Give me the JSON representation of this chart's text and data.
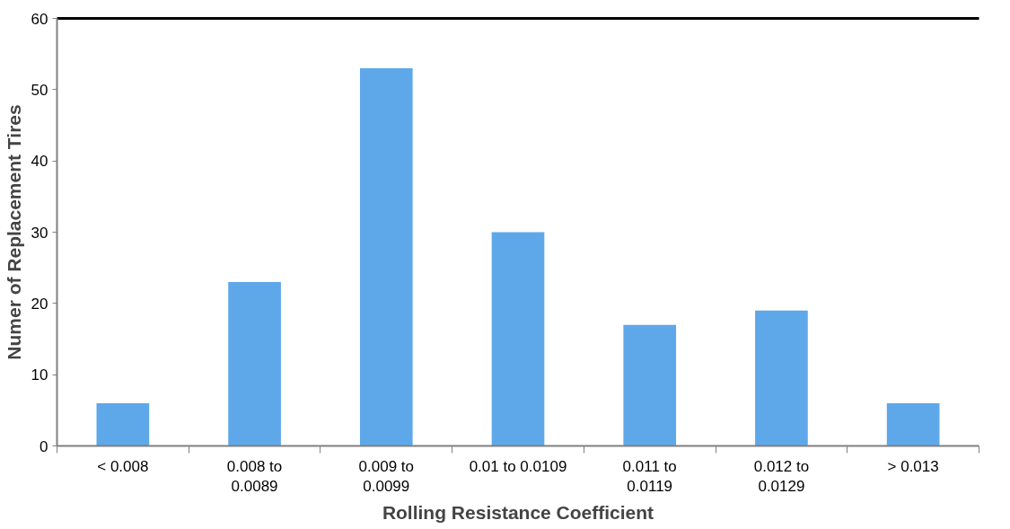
{
  "chart_data": {
    "type": "bar",
    "xlabel": "Rolling Resistance Coefficient",
    "ylabel": "Numer of Replacement Tires",
    "categories": [
      "< 0.008",
      "0.008 to 0.0089",
      "0.009 to 0.0099",
      "0.01 to 0.0109",
      "0.011 to 0.0119",
      "0.012 to 0.0129",
      "> 0.013"
    ],
    "values": [
      6,
      23,
      53,
      30,
      17,
      19,
      6
    ],
    "color": "#5ea8ea",
    "ylim": [
      0,
      60
    ],
    "yticks": [
      0,
      10,
      20,
      30,
      40,
      50,
      60
    ],
    "grid": false
  }
}
